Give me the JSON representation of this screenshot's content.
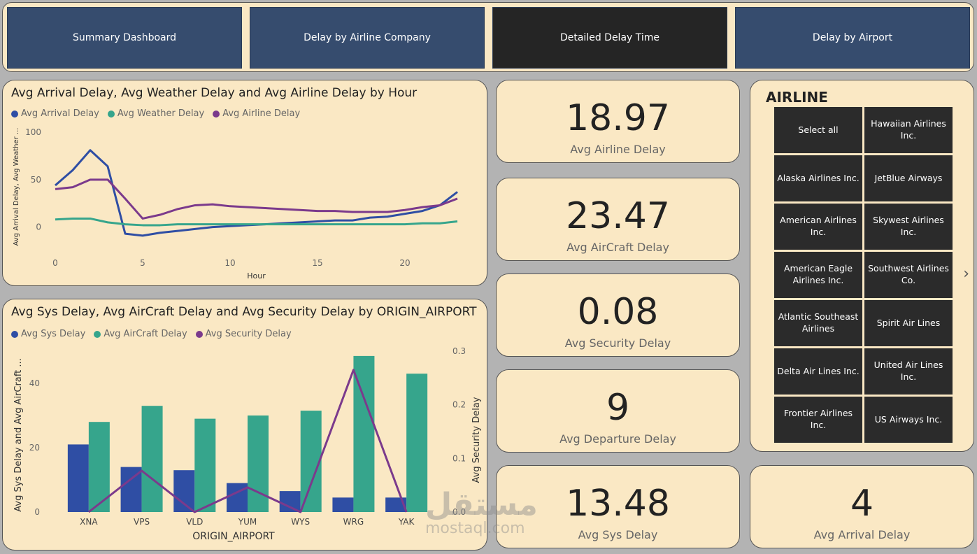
{
  "nav": {
    "buttons": [
      {
        "label": "Summary Dashboard"
      },
      {
        "label": "Delay by Airline Company"
      },
      {
        "label": "Detailed Delay Time"
      },
      {
        "label": "Delay by Airport"
      }
    ],
    "active_index": 2
  },
  "colors": {
    "background": "#b3b3b3",
    "card": "#fae8c4",
    "nav_button": "#364c6e",
    "nav_active": "#252525",
    "series_blue": "#2f4ea4",
    "series_teal": "#36a58c",
    "series_purple": "#7b3a8c"
  },
  "kpis": [
    {
      "value": "18.97",
      "label": "Avg Airline Delay"
    },
    {
      "value": "23.47",
      "label": "Avg AirCraft Delay"
    },
    {
      "value": "0.08",
      "label": "Avg Security Delay"
    },
    {
      "value": "9",
      "label": "Avg Departure Delay"
    },
    {
      "value": "13.48",
      "label": "Avg Sys Delay"
    },
    {
      "value": "4",
      "label": "Avg Arrival Delay"
    }
  ],
  "slicer": {
    "title": "AIRLINE",
    "items": [
      "Select all",
      "Hawaiian Airlines Inc.",
      "Alaska Airlines Inc.",
      "JetBlue Airways",
      "American Airlines Inc.",
      "Skywest Airlines Inc.",
      "American Eagle Airlines Inc.",
      "Southwest Airlines Co.",
      "Atlantic Southeast Airlines",
      "Spirit Air Lines",
      "Delta Air Lines Inc.",
      "United Air Lines Inc.",
      "Frontier Airlines Inc.",
      "US Airways Inc."
    ],
    "next_icon": "chevron-right-icon"
  },
  "watermark": {
    "arabic": "مستقل",
    "latin": "mostaql.com"
  },
  "chart_data": [
    {
      "type": "line",
      "title": "Avg Arrival Delay, Avg Weather Delay and Avg Airline Delay by Hour",
      "xlabel": "Hour",
      "ylabel": "Avg Arrival Delay, Avg Weather ...",
      "x": [
        0,
        1,
        2,
        3,
        4,
        5,
        6,
        7,
        8,
        9,
        10,
        11,
        12,
        13,
        14,
        15,
        16,
        17,
        18,
        19,
        20,
        21,
        22,
        23
      ],
      "xticks": [
        "0",
        "5",
        "10",
        "15",
        "20"
      ],
      "yticks": [
        "0",
        "50",
        "100"
      ],
      "xlim": [
        0,
        23
      ],
      "ylim": [
        -15,
        100
      ],
      "series": [
        {
          "name": "Avg Arrival Delay",
          "color": "#2f4ea4",
          "values": [
            44,
            60,
            81,
            64,
            -7,
            -9,
            -6,
            -4,
            -2,
            0,
            1,
            2,
            3,
            4,
            5,
            6,
            7,
            7,
            10,
            11,
            14,
            17,
            23,
            37
          ]
        },
        {
          "name": "Avg Weather Delay",
          "color": "#36a58c",
          "values": [
            8,
            9,
            9,
            5,
            3,
            2,
            2,
            3,
            3,
            3,
            3,
            3,
            3,
            3,
            3,
            3,
            3,
            3,
            3,
            3,
            3,
            4,
            4,
            6
          ]
        },
        {
          "name": "Avg Airline Delay",
          "color": "#7b3a8c",
          "values": [
            40,
            42,
            50,
            50,
            30,
            9,
            13,
            19,
            23,
            24,
            22,
            21,
            20,
            19,
            18,
            17,
            17,
            16,
            16,
            16,
            18,
            21,
            23,
            30
          ]
        }
      ],
      "legend": "top-left"
    },
    {
      "type": "bar",
      "title": "Avg Sys Delay, Avg AirCraft Delay and Avg Security Delay by ORIGIN_AIRPORT",
      "xlabel": "ORIGIN_AIRPORT",
      "ylabel": "Avg Sys Delay and Avg AirCraft ...",
      "y2label": "Avg Security Delay",
      "categories": [
        "XNA",
        "VPS",
        "VLD",
        "YUM",
        "WYS",
        "WRG",
        "YAK"
      ],
      "yticks": [
        "0",
        "20",
        "40"
      ],
      "y2ticks": [
        "0.0",
        "0.1",
        "0.2",
        "0.3"
      ],
      "ylim": [
        0,
        50
      ],
      "y2lim": [
        0,
        0.3
      ],
      "series": [
        {
          "name": "Avg Sys Delay",
          "color": "#2f4ea4",
          "axis": "left",
          "values": [
            21,
            14,
            13,
            9,
            6.5,
            4.5,
            4.5
          ]
        },
        {
          "name": "Avg AirCraft Delay",
          "color": "#36a58c",
          "axis": "left",
          "values": [
            28,
            33,
            29,
            30,
            31.5,
            48.5,
            43
          ]
        },
        {
          "name": "Avg Security Delay",
          "color": "#7b3a8c",
          "axis": "right",
          "type": "line",
          "values": [
            0,
            0.077,
            0,
            0.046,
            0,
            0.265,
            0
          ]
        }
      ],
      "legend": "top-left"
    }
  ]
}
